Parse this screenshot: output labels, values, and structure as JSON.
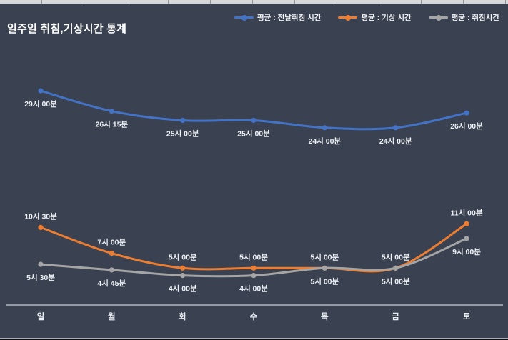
{
  "title": "일주일 취침,기상시간 통계",
  "legend": [
    {
      "label": "평균 : 전날취침 시간",
      "color": "#4472c4"
    },
    {
      "label": "평균 : 기상 시간",
      "color": "#ed7d31"
    },
    {
      "label": "평균 : 취침시간",
      "color": "#a5a5a5"
    }
  ],
  "colors": {
    "background": "#3a4252",
    "axis": "#c9cdd6",
    "data_label_text": "#eef1f5",
    "title_text": "#ffffff",
    "series_blue": "#4472c4",
    "series_orange": "#ed7d31",
    "series_gray": "#a5a5a5"
  },
  "chart_data": {
    "type": "line",
    "smooth": true,
    "grid": false,
    "legend_position": "top-right",
    "title": "일주일 취침,기상시간 통계",
    "xlabel": "",
    "ylabel": "",
    "y_axis_labels_visible": false,
    "ylim_hours": [
      0,
      30
    ],
    "categories": [
      "일",
      "월",
      "화",
      "수",
      "목",
      "금",
      "토"
    ],
    "series": [
      {
        "name": "평균 : 전날취침 시간",
        "color": "#4472c4",
        "values_hours": [
          29.0,
          26.25,
          25.0,
          25.0,
          24.0,
          24.0,
          26.0
        ],
        "labels": [
          "29시 00분",
          "26시 15분",
          "25시 00분",
          "25시 00분",
          "24시 00분",
          "24시 00분",
          "26시 00분"
        ],
        "label_position": "below"
      },
      {
        "name": "평균 : 기상 시간",
        "color": "#ed7d31",
        "values_hours": [
          10.5,
          7.0,
          5.0,
          5.0,
          5.0,
          5.0,
          11.0
        ],
        "labels": [
          "10시 30분",
          "7시 00분",
          "5시 00분",
          "5시 00분",
          "5시 00분",
          "5시 00분",
          "11시 00분"
        ],
        "label_position": "above"
      },
      {
        "name": "평균 : 취침시간",
        "color": "#a5a5a5",
        "values_hours": [
          5.5,
          4.75,
          4.0,
          4.0,
          5.0,
          5.0,
          9.0
        ],
        "labels": [
          "5시 30분",
          "4시 45분",
          "4시 00분",
          "4시 00분",
          "5시 00분",
          "5시 00분",
          "9시 00분"
        ],
        "label_position": "below"
      }
    ]
  }
}
